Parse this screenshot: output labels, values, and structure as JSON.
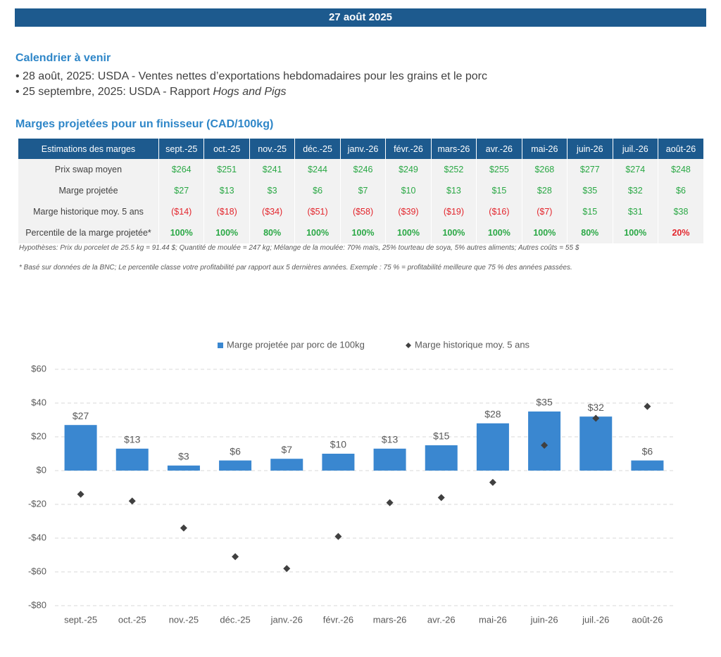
{
  "header": {
    "date": "27 août 2025"
  },
  "calendar": {
    "title": "Calendrier à venir",
    "items": [
      {
        "text": "28 août, 2025: USDA - Ventes nettes d’exportations hebdomadaires pour les grains et le porc"
      },
      {
        "text": "25 septembre, 2025: USDA - Rapport",
        "italic": "Hogs and Pigs"
      }
    ]
  },
  "table": {
    "title": "Marges projetées pour un finisseur (CAD/100kg)",
    "header": [
      "Estimations des marges",
      "sept.-25",
      "oct.-25",
      "nov.-25",
      "déc.-25",
      "janv.-26",
      "févr.-26",
      "mars-26",
      "avr.-26",
      "mai-26",
      "juin-26",
      "juil.-26",
      "août-26"
    ],
    "rows": [
      {
        "label": "Prix swap moyen",
        "cells": [
          "$264",
          "$251",
          "$241",
          "$244",
          "$246",
          "$249",
          "$252",
          "$255",
          "$268",
          "$277",
          "$274",
          "$248"
        ],
        "colors": [
          "#2aa845",
          "#2aa845",
          "#2aa845",
          "#2aa845",
          "#2aa845",
          "#2aa845",
          "#2aa845",
          "#2aa845",
          "#2aa845",
          "#2aa845",
          "#2aa845",
          "#2aa845"
        ]
      },
      {
        "label": "Marge projetée",
        "cells": [
          "$27",
          "$13",
          "$3",
          "$6",
          "$7",
          "$10",
          "$13",
          "$15",
          "$28",
          "$35",
          "$32",
          "$6"
        ],
        "colors": [
          "#2aa845",
          "#2aa845",
          "#2aa845",
          "#2aa845",
          "#2aa845",
          "#2aa845",
          "#2aa845",
          "#2aa845",
          "#2aa845",
          "#2aa845",
          "#2aa845",
          "#2aa845"
        ]
      },
      {
        "label": "Marge historique moy. 5 ans",
        "cells": [
          "($14)",
          "($18)",
          "($34)",
          "($51)",
          "($58)",
          "($39)",
          "($19)",
          "($16)",
          "($7)",
          "$15",
          "$31",
          "$38"
        ],
        "colors": [
          "#e3262d",
          "#e3262d",
          "#e3262d",
          "#e3262d",
          "#e3262d",
          "#e3262d",
          "#e3262d",
          "#e3262d",
          "#e3262d",
          "#2aa845",
          "#2aa845",
          "#2aa845"
        ]
      },
      {
        "label": "Percentile de la marge projetée*",
        "cells": [
          "100%",
          "100%",
          "80%",
          "100%",
          "100%",
          "100%",
          "100%",
          "100%",
          "100%",
          "80%",
          "100%",
          "20%"
        ],
        "colors": [
          "#2aa845",
          "#2aa845",
          "#2aa845",
          "#2aa845",
          "#2aa845",
          "#2aa845",
          "#2aa845",
          "#2aa845",
          "#2aa845",
          "#2aa845",
          "#2aa845",
          "#e3262d"
        ],
        "bold": true
      }
    ],
    "notes": [
      "Hypothèses: Prix du porcelet de 25.5 kg = 91.44 $; Quantité de moulée = 247 kg; Mélange de la moulée: 70% maïs, 25% tourteau de soya, 5% autres aliments; Autres coûts = 55 $",
      "* Basé sur données de la BNC; Le percentile classe votre profitabilité par rapport aux 5 dernières années. Exemple : 75 % = profitabilité meilleure que 75 % des années passées."
    ]
  },
  "chart_data": {
    "type": "bar",
    "categories": [
      "sept.-25",
      "oct.-25",
      "nov.-25",
      "déc.-25",
      "janv.-26",
      "févr.-26",
      "mars-26",
      "avr.-26",
      "mai-26",
      "juin-26",
      "juil.-26",
      "août-26"
    ],
    "series": [
      {
        "name": "Marge projetée par porc de 100kg",
        "type": "bar",
        "color": "#3a87d0",
        "values": [
          27,
          13,
          3,
          6,
          7,
          10,
          13,
          15,
          28,
          35,
          32,
          6
        ],
        "value_labels": [
          "$27",
          "$13",
          "$3",
          "$6",
          "$7",
          "$10",
          "$13",
          "$15",
          "$28",
          "$35",
          "$32",
          "$6"
        ]
      },
      {
        "name": "Marge historique moy. 5 ans",
        "type": "scatter",
        "color": "#404040",
        "values": [
          -14,
          -18,
          -34,
          -51,
          -58,
          -39,
          -19,
          -16,
          -7,
          15,
          31,
          38
        ]
      }
    ],
    "ylim": [
      -80,
      60
    ],
    "yticks": [
      {
        "value": -80,
        "label": "-$80"
      },
      {
        "value": -60,
        "label": "-$60"
      },
      {
        "value": -40,
        "label": "-$40"
      },
      {
        "value": -20,
        "label": "-$20"
      },
      {
        "value": 0,
        "label": "$0"
      },
      {
        "value": 20,
        "label": "$20"
      },
      {
        "value": 40,
        "label": "$40"
      },
      {
        "value": 60,
        "label": "$60"
      }
    ],
    "grid": true,
    "legend": "top"
  }
}
